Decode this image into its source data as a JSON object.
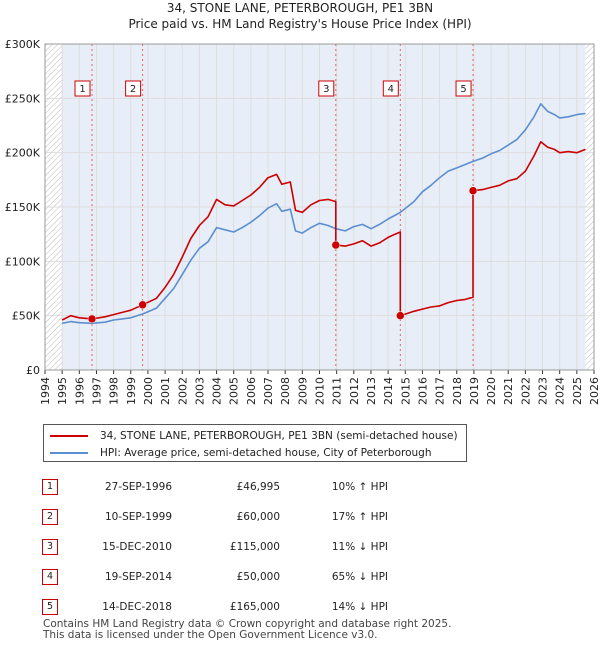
{
  "chart_data": {
    "type": "line",
    "title": "34, STONE LANE, PETERBOROUGH, PE1 3BN",
    "subtitle": "Price paid vs. HM Land Registry's House Price Index (HPI)",
    "xlim": [
      1994,
      2026
    ],
    "ylim": [
      0,
      300000
    ],
    "x_ticks": [
      "1994",
      "1995",
      "1996",
      "1997",
      "1998",
      "1999",
      "2000",
      "2001",
      "2002",
      "2003",
      "2004",
      "2005",
      "2006",
      "2007",
      "2008",
      "2009",
      "2010",
      "2011",
      "2012",
      "2013",
      "2014",
      "2015",
      "2016",
      "2017",
      "2018",
      "2019",
      "2020",
      "2021",
      "2022",
      "2023",
      "2024",
      "2025",
      "2026"
    ],
    "y_ticks": [
      {
        "value": 0,
        "label": "£0"
      },
      {
        "value": 50000,
        "label": "£50K"
      },
      {
        "value": 100000,
        "label": "£100K"
      },
      {
        "value": 150000,
        "label": "£150K"
      },
      {
        "value": 200000,
        "label": "£200K"
      },
      {
        "value": 250000,
        "label": "£250K"
      },
      {
        "value": 300000,
        "label": "£300K"
      }
    ],
    "data_start": 1995.0,
    "data_end": 2025.5,
    "grid": true,
    "colors": {
      "price": "#cc0000",
      "hpi": "#5b8fd0",
      "band": "#e8eef8",
      "hatch": "#bbbbbb",
      "grid": "#dddddd"
    },
    "series": [
      {
        "name": "34, STONE LANE, PETERBOROUGH, PE1 3BN (semi-detached house)",
        "color": "#cc0000",
        "x": [
          1995.0,
          1995.5,
          1996.0,
          1996.74,
          1996.74,
          1997.5,
          1998.0,
          1998.5,
          1999.0,
          1999.69,
          1999.69,
          2000.5,
          2001.0,
          2001.5,
          2002.0,
          2002.5,
          2003.0,
          2003.5,
          2004.0,
          2004.5,
          2005.0,
          2005.5,
          2006.0,
          2006.5,
          2007.0,
          2007.5,
          2007.8,
          2008.3,
          2008.6,
          2009.0,
          2009.5,
          2010.0,
          2010.5,
          2010.95,
          2010.95,
          2011.5,
          2012.0,
          2012.5,
          2013.0,
          2013.5,
          2014.0,
          2014.4,
          2014.71,
          2014.71,
          2015.5,
          2016.0,
          2016.5,
          2017.0,
          2017.5,
          2018.0,
          2018.5,
          2018.95,
          2018.95,
          2019.5,
          2020.0,
          2020.5,
          2021.0,
          2021.5,
          2022.0,
          2022.5,
          2022.9,
          2023.3,
          2023.7,
          2024.0,
          2024.5,
          2025.0,
          2025.5
        ],
        "values": [
          46000,
          50000,
          48000,
          46995,
          46995,
          49000,
          51000,
          53000,
          55000,
          60000,
          60000,
          66000,
          76000,
          88000,
          104000,
          121000,
          133000,
          141000,
          157000,
          152000,
          151000,
          156000,
          161000,
          168000,
          177000,
          180000,
          171000,
          173000,
          147000,
          145000,
          152000,
          156000,
          157000,
          155000,
          115000,
          114000,
          116000,
          119000,
          114000,
          117000,
          122000,
          125000,
          127000,
          50000,
          54000,
          56000,
          58000,
          59000,
          62000,
          64000,
          65000,
          67000,
          165000,
          166000,
          168000,
          170000,
          174000,
          176000,
          183000,
          197000,
          210000,
          205000,
          203000,
          200000,
          201000,
          200000,
          203000
        ]
      },
      {
        "name": "HPI: Average price, semi-detached house, City of Peterborough",
        "color": "#5b8fd0",
        "x": [
          1995.0,
          1995.5,
          1996.0,
          1996.74,
          1997.5,
          1998.0,
          1998.5,
          1999.0,
          1999.69,
          2000.5,
          2001.0,
          2001.5,
          2002.0,
          2002.5,
          2003.0,
          2003.5,
          2004.0,
          2004.5,
          2005.0,
          2005.5,
          2006.0,
          2006.5,
          2007.0,
          2007.5,
          2007.8,
          2008.3,
          2008.6,
          2009.0,
          2009.5,
          2010.0,
          2010.5,
          2010.95,
          2011.5,
          2012.0,
          2012.5,
          2013.0,
          2013.5,
          2014.0,
          2014.71,
          2015.5,
          2016.0,
          2016.5,
          2017.0,
          2017.5,
          2018.0,
          2018.95,
          2019.5,
          2020.0,
          2020.5,
          2021.0,
          2021.5,
          2022.0,
          2022.5,
          2022.9,
          2023.3,
          2023.7,
          2024.0,
          2024.5,
          2025.0,
          2025.5
        ],
        "values": [
          43000,
          44500,
          43500,
          43000,
          44000,
          46000,
          47000,
          48000,
          51500,
          57000,
          66000,
          75000,
          88000,
          101000,
          112000,
          118000,
          131000,
          129000,
          127000,
          131000,
          136000,
          142000,
          149000,
          153000,
          146000,
          148000,
          128000,
          126000,
          131000,
          135000,
          133000,
          130000,
          128000,
          132000,
          134000,
          130000,
          134000,
          139000,
          145000,
          155000,
          164000,
          170000,
          177000,
          183000,
          186000,
          192000,
          195000,
          199000,
          202000,
          207000,
          212000,
          221000,
          233000,
          245000,
          238000,
          235000,
          232000,
          233000,
          235000,
          236000
        ]
      }
    ],
    "sales": [
      {
        "n": "1",
        "x": 1996.74,
        "value": 46995
      },
      {
        "n": "2",
        "x": 1999.69,
        "value": 60000
      },
      {
        "n": "3",
        "x": 2010.95,
        "value": 115000
      },
      {
        "n": "4",
        "x": 2014.71,
        "value": 50000
      },
      {
        "n": "5",
        "x": 2018.95,
        "value": 165000
      }
    ]
  },
  "legend": {
    "items": [
      {
        "label": "34, STONE LANE, PETERBOROUGH, PE1 3BN (semi-detached house)",
        "color": "#cc0000"
      },
      {
        "label": "HPI: Average price, semi-detached house, City of Peterborough",
        "color": "#5b8fd0"
      }
    ]
  },
  "sales_table": [
    {
      "n": "1",
      "date": "27-SEP-1996",
      "price": "£46,995",
      "hpi": "10% ↑ HPI"
    },
    {
      "n": "2",
      "date": "10-SEP-1999",
      "price": "£60,000",
      "hpi": "17% ↑ HPI"
    },
    {
      "n": "3",
      "date": "15-DEC-2010",
      "price": "£115,000",
      "hpi": "11% ↓ HPI"
    },
    {
      "n": "4",
      "date": "19-SEP-2014",
      "price": "£50,000",
      "hpi": "65% ↓ HPI"
    },
    {
      "n": "5",
      "date": "14-DEC-2018",
      "price": "£165,000",
      "hpi": "14% ↓ HPI"
    }
  ],
  "footer": {
    "line1": "Contains HM Land Registry data © Crown copyright and database right 2025.",
    "line2": "This data is licensed under the Open Government Licence v3.0."
  }
}
